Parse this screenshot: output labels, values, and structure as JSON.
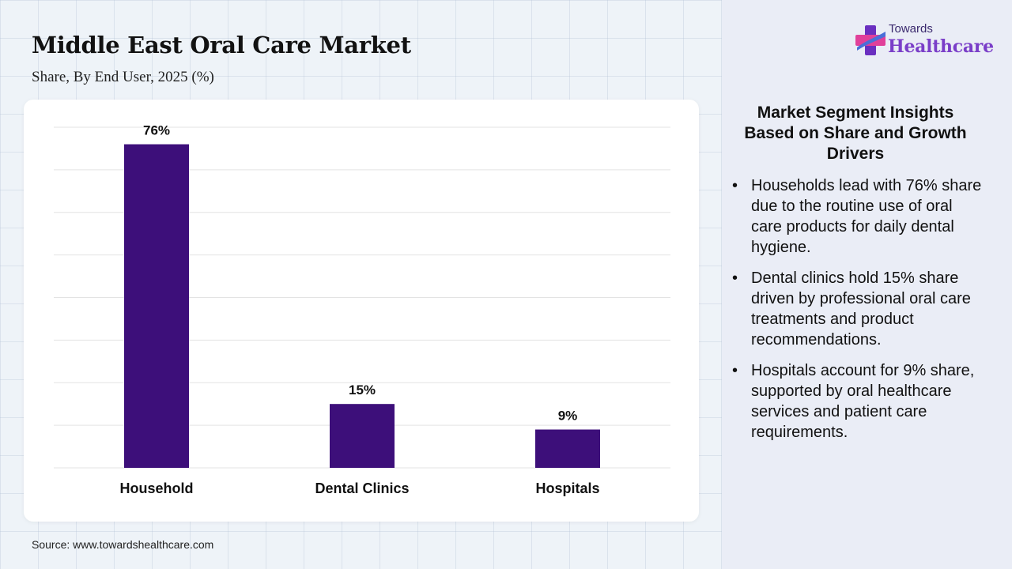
{
  "title": "Middle East Oral Care Market",
  "subtitle": "Share, By End User, 2025 (%)",
  "source": "Source: www.towardshealthcare.com",
  "logo": {
    "small": "Towards",
    "big": "Healthcare",
    "colors": {
      "pink": "#e0409a",
      "purple": "#6a2fc0",
      "blue": "#4a6fd8"
    }
  },
  "insights": {
    "title": "Market Segment Insights Based on Share and Growth Drivers",
    "items": [
      "Households lead with 76% share due to the routine use of oral care products for daily dental hygiene.",
      "Dental clinics hold 15% share driven by professional oral care treatments and product recommendations.",
      "Hospitals account for 9% share, supported by oral healthcare services and patient care requirements."
    ]
  },
  "chart_data": {
    "type": "bar",
    "title": "Middle East Oral Care Market",
    "subtitle": "Share, By End User, 2025 (%)",
    "categories": [
      "Household",
      "Dental Clinics",
      "Hospitals"
    ],
    "values": [
      76,
      15,
      9
    ],
    "data_labels": [
      "76%",
      "15%",
      "9%"
    ],
    "ylim": [
      0,
      80
    ],
    "grid": true,
    "bar_color": "#3d0f7a",
    "xlabel": "",
    "ylabel": ""
  }
}
